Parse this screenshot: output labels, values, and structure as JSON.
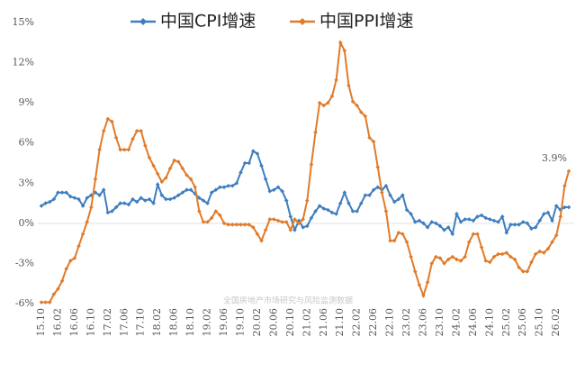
{
  "chart_data": {
    "type": "line",
    "legend_position": "top",
    "grid": false,
    "watermark": "全国房地产市场研究与风险监测数据",
    "annotations": [
      {
        "text": "3.9%",
        "series": 1
      }
    ],
    "categories": [
      "15.10",
      null,
      null,
      null,
      "16.02",
      null,
      null,
      null,
      "16.06",
      null,
      null,
      null,
      "16.10",
      null,
      null,
      null,
      "17.02",
      null,
      null,
      null,
      "17.06",
      null,
      null,
      null,
      "17.10",
      null,
      null,
      null,
      "18.02",
      null,
      null,
      null,
      "18.06",
      null,
      null,
      null,
      "18.10",
      null,
      null,
      null,
      "19.02",
      null,
      null,
      null,
      "19.06",
      null,
      null,
      null,
      "19.10",
      null,
      null,
      null,
      "20.02",
      null,
      null,
      null,
      "20.06",
      null,
      null,
      null,
      "20.10",
      null,
      null,
      null,
      "21.02",
      null,
      null,
      null,
      "21.06",
      null,
      null,
      null,
      "21.10",
      null,
      null,
      null,
      "22.02",
      null,
      null,
      null,
      "22.06",
      null,
      null,
      null,
      "22.10",
      null,
      null,
      null,
      "23.02",
      null,
      null,
      null,
      "23.06",
      null,
      null,
      null,
      "23.10",
      null,
      null,
      null,
      "24.02",
      null,
      null,
      null,
      "24.06",
      null,
      null,
      null,
      "24.10",
      null,
      null,
      null,
      "25.02",
      null,
      null,
      null,
      "25.06",
      null,
      null,
      null,
      "25.10",
      null,
      null,
      null,
      "26.02",
      null,
      null,
      null
    ],
    "series": [
      {
        "name": "中国CPI增速",
        "color": "#3d7ebf",
        "values": [
          1.3,
          1.5,
          1.6,
          1.8,
          2.3,
          2.3,
          2.3,
          2.0,
          1.9,
          1.8,
          1.3,
          1.9,
          2.1,
          2.3,
          2.1,
          2.5,
          0.8,
          0.9,
          1.2,
          1.5,
          1.5,
          1.4,
          1.8,
          1.6,
          1.9,
          1.7,
          1.8,
          1.5,
          2.9,
          2.1,
          1.8,
          1.8,
          1.9,
          2.1,
          2.3,
          2.5,
          2.5,
          2.2,
          1.9,
          1.7,
          1.5,
          2.3,
          2.5,
          2.7,
          2.7,
          2.8,
          2.8,
          3.0,
          3.8,
          4.5,
          4.5,
          5.4,
          5.2,
          4.3,
          3.3,
          2.4,
          2.5,
          2.7,
          2.4,
          1.7,
          0.5,
          -0.5,
          0.2,
          -0.3,
          -0.2,
          0.4,
          0.9,
          1.3,
          1.1,
          1.0,
          0.8,
          0.7,
          1.5,
          2.3,
          1.5,
          0.9,
          0.9,
          1.5,
          2.1,
          2.1,
          2.5,
          2.7,
          2.5,
          2.8,
          2.1,
          1.6,
          1.8,
          2.1,
          1.0,
          0.7,
          0.1,
          0.2,
          0.0,
          -0.3,
          0.1,
          0.0,
          -0.2,
          -0.5,
          -0.3,
          -0.8,
          0.7,
          0.1,
          0.3,
          0.3,
          0.2,
          0.5,
          0.6,
          0.4,
          0.3,
          0.2,
          0.1,
          0.5,
          -0.7,
          -0.1,
          -0.1,
          -0.1,
          0.1,
          0.0,
          -0.4,
          -0.3,
          0.2,
          0.7,
          0.8,
          0.2,
          1.3,
          1.0,
          1.2,
          1.2
        ]
      },
      {
        "name": "中国PPI增速",
        "color": "#e07b2a",
        "values": [
          -5.9,
          -5.9,
          -5.9,
          -5.3,
          -4.9,
          -4.3,
          -3.4,
          -2.8,
          -2.6,
          -1.7,
          -0.8,
          0.1,
          1.2,
          3.3,
          5.5,
          6.9,
          7.8,
          7.6,
          6.4,
          5.5,
          5.5,
          5.5,
          6.3,
          6.9,
          6.9,
          5.8,
          4.9,
          4.3,
          3.7,
          3.1,
          3.4,
          4.1,
          4.7,
          4.6,
          4.1,
          3.6,
          3.3,
          2.7,
          0.9,
          0.1,
          0.1,
          0.4,
          0.9,
          0.6,
          0.0,
          -0.1,
          -0.1,
          -0.1,
          -0.1,
          -0.1,
          -0.1,
          -0.3,
          -0.8,
          -1.3,
          -0.5,
          0.3,
          0.3,
          0.2,
          0.1,
          0.1,
          -0.5,
          0.3,
          0.0,
          0.3,
          1.7,
          4.4,
          6.8,
          9.0,
          8.8,
          9.0,
          9.5,
          10.7,
          13.5,
          12.9,
          10.3,
          9.1,
          8.8,
          8.3,
          8.0,
          6.4,
          6.1,
          4.2,
          2.3,
          0.9,
          -1.3,
          -1.3,
          -0.7,
          -0.8,
          -1.4,
          -2.5,
          -3.6,
          -4.6,
          -5.4,
          -4.4,
          -3.0,
          -2.5,
          -2.6,
          -3.0,
          -2.7,
          -2.5,
          -2.7,
          -2.8,
          -2.5,
          -1.4,
          -0.8,
          -0.8,
          -1.8,
          -2.8,
          -2.9,
          -2.5,
          -2.3,
          -2.3,
          -2.2,
          -2.5,
          -2.7,
          -3.3,
          -3.6,
          -3.6,
          -2.9,
          -2.3,
          -2.1,
          -2.2,
          -1.9,
          -1.4,
          -0.9,
          0.5,
          2.8,
          3.9
        ]
      }
    ],
    "ylim": [
      -6,
      15
    ],
    "yticks": [
      {
        "value": -6,
        "label": "-6%"
      },
      {
        "value": -3,
        "label": "-3%"
      },
      {
        "value": 0,
        "label": "0%"
      },
      {
        "value": 3,
        "label": "3%"
      },
      {
        "value": 6,
        "label": "6%"
      },
      {
        "value": 9,
        "label": "9%"
      },
      {
        "value": 12,
        "label": "12%"
      },
      {
        "value": 15,
        "label": "15%"
      }
    ]
  }
}
